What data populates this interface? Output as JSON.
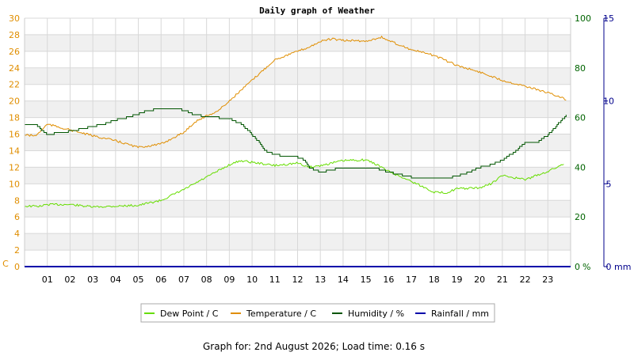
{
  "chart_data": {
    "type": "line",
    "title": "Daily graph of Weather",
    "footer": "Graph for: 2nd August 2026; Load time: 0.16 s",
    "x_ticks": [
      "01",
      "02",
      "03",
      "04",
      "05",
      "06",
      "07",
      "08",
      "09",
      "10",
      "11",
      "12",
      "13",
      "14",
      "15",
      "16",
      "17",
      "18",
      "19",
      "20",
      "21",
      "22",
      "23"
    ],
    "x_range": [
      0,
      24
    ],
    "axes": {
      "left": {
        "unit": "C",
        "range": [
          0,
          30
        ],
        "ticks": [
          0,
          2,
          4,
          6,
          8,
          10,
          12,
          14,
          16,
          18,
          20,
          22,
          24,
          26,
          28,
          30
        ],
        "color": "#e08e00"
      },
      "humidity": {
        "unit": "%",
        "range": [
          0,
          100
        ],
        "ticks": [
          0,
          20,
          40,
          60,
          80,
          100
        ],
        "color": "#006400"
      },
      "rainfall": {
        "unit": "mm",
        "range": [
          0,
          15
        ],
        "ticks": [
          0,
          5,
          10,
          15
        ],
        "color": "#00008b"
      }
    },
    "grid": true,
    "legend_position": "bottom",
    "series": [
      {
        "name": "Dew Point / C",
        "axis": "left",
        "color": "#66dd00",
        "x": [
          0,
          0.7,
          1,
          2,
          3,
          4,
          5,
          6,
          7,
          8,
          9,
          9.5,
          10,
          11,
          12,
          12.5,
          13,
          14,
          15,
          15.5,
          16,
          17,
          18,
          18.5,
          19,
          20,
          20.5,
          21,
          22,
          23,
          23.7
        ],
        "y": [
          7.3,
          7.3,
          7.5,
          7.5,
          7.2,
          7.3,
          7.4,
          8,
          9.3,
          10.8,
          12.3,
          12.8,
          12.6,
          12.2,
          12.5,
          12.0,
          12.2,
          12.8,
          12.9,
          12.3,
          11.5,
          10.3,
          9.0,
          8.9,
          9.4,
          9.5,
          10,
          11,
          10.5,
          11.5,
          12.4
        ]
      },
      {
        "name": "Temperature / C",
        "axis": "left",
        "color": "#e08e00",
        "x": [
          0,
          0.5,
          1,
          2,
          3,
          4,
          5,
          6,
          7,
          7.5,
          8,
          8.5,
          9,
          10,
          11,
          12,
          12.5,
          13,
          13.5,
          14,
          14.5,
          15,
          15.5,
          15.7,
          16,
          17,
          18,
          19,
          20,
          21,
          22,
          23,
          23.8
        ],
        "y": [
          15.9,
          15.8,
          17.2,
          16.5,
          15.8,
          15.2,
          14.4,
          14.8,
          16.2,
          17.5,
          18.2,
          18.8,
          20,
          22.5,
          25,
          26,
          26.5,
          27.2,
          27.5,
          27.3,
          27.3,
          27.2,
          27.6,
          27.7,
          27.3,
          26.2,
          25.5,
          24.3,
          23.5,
          22.5,
          21.8,
          21,
          20.2
        ]
      },
      {
        "name": "Humidity / %",
        "axis": "hum",
        "color": "#005500",
        "x": [
          0,
          0.5,
          1,
          1.5,
          2,
          2.5,
          3,
          3.5,
          4,
          4.5,
          5,
          5.3,
          5.5,
          6,
          6.5,
          7,
          7.5,
          8,
          8.5,
          9,
          9.5,
          9.8,
          10,
          10.3,
          10.5,
          11,
          11.5,
          12,
          12.3,
          12.5,
          13,
          13.5,
          14,
          14.5,
          15,
          15.5,
          16,
          16.5,
          17,
          17.5,
          18,
          18.5,
          19,
          19.5,
          20,
          20.5,
          21,
          21.5,
          22,
          22.5,
          23,
          23.5,
          23.8
        ],
        "y": [
          57,
          57,
          53,
          54,
          54.5,
          55.5,
          56.5,
          57.5,
          59,
          60,
          61.5,
          62.5,
          63,
          63.5,
          63.5,
          63,
          61,
          60.5,
          60,
          59.5,
          57.5,
          55,
          53,
          50,
          47,
          45,
          44.5,
          44,
          43,
          40,
          38,
          39,
          40,
          40,
          40,
          39.5,
          38,
          37,
          36,
          36,
          35.5,
          35.5,
          36.5,
          38,
          40,
          41,
          43,
          46,
          50,
          50,
          53,
          58,
          61
        ]
      },
      {
        "name": "Rainfall / mm",
        "axis": "rain",
        "color": "#0000aa",
        "x": [
          0,
          24
        ],
        "y": [
          0,
          0
        ]
      }
    ]
  }
}
